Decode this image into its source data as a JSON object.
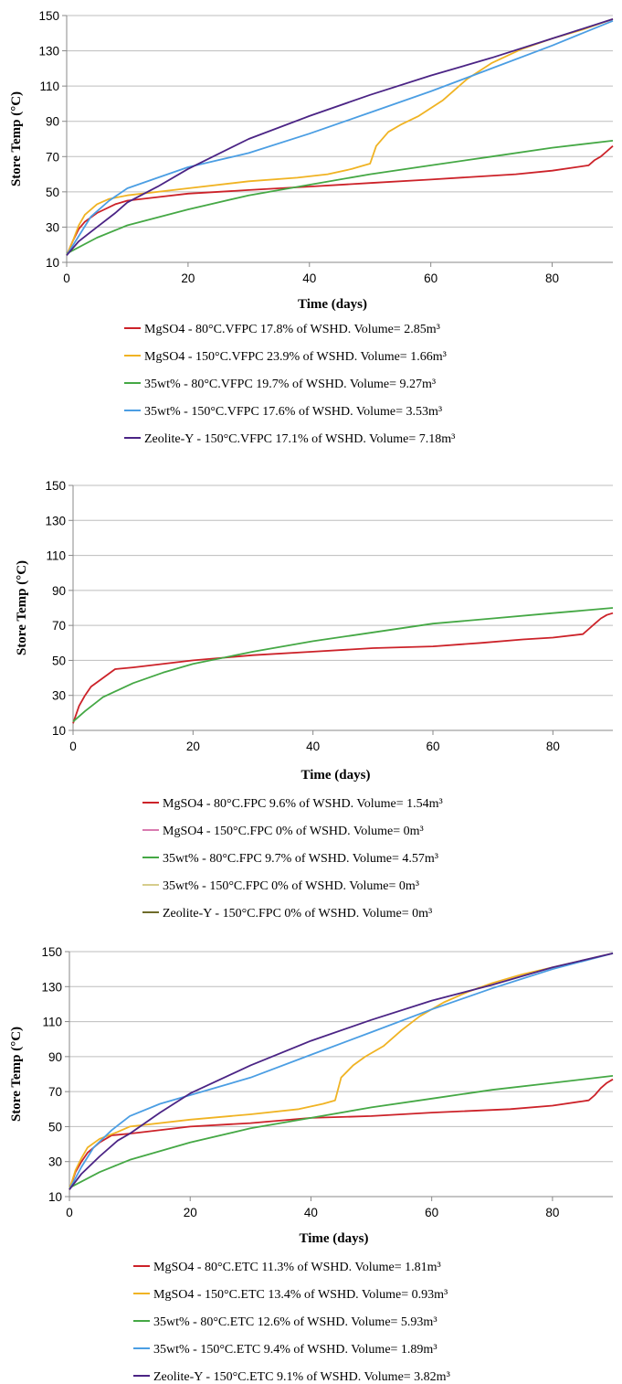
{
  "chart_data": [
    {
      "type": "line",
      "xlabel": "Time (days)",
      "ylabel": "Store Temp (°C)",
      "xlim": [
        0,
        90
      ],
      "ylim": [
        10,
        150
      ],
      "xticks": [
        "0",
        "20",
        "40",
        "60",
        "80"
      ],
      "yticks": [
        "10",
        "30",
        "50",
        "70",
        "90",
        "110",
        "130",
        "150"
      ],
      "grid": "horizontal",
      "legend_position": "bottom",
      "series": [
        {
          "name": "MgSO4 - 80°C.VFPC 17.8% of WSHD. Volume= 2.85m³",
          "color": "#cc2229",
          "x": [
            0,
            1,
            2,
            3,
            5,
            8,
            10,
            15,
            20,
            30,
            40,
            50,
            60,
            74,
            80,
            86,
            87,
            88,
            89,
            90
          ],
          "y": [
            14,
            22,
            29,
            33,
            38,
            43,
            45,
            47,
            49,
            51,
            53,
            55,
            57,
            60,
            62,
            65,
            68,
            70,
            73,
            76
          ]
        },
        {
          "name": "MgSO4 - 150°C.VFPC 23.9% of WSHD. Volume= 1.66m³",
          "color": "#f0b323",
          "x": [
            0,
            1,
            2,
            3,
            5,
            7,
            10,
            20,
            30,
            38,
            43,
            47,
            49,
            50,
            51,
            53,
            55,
            58,
            62,
            66,
            70,
            75,
            80,
            85,
            90
          ],
          "y": [
            14,
            22,
            31,
            37,
            43,
            46,
            48,
            52,
            56,
            58,
            60,
            63,
            65,
            66,
            76,
            84,
            88,
            93,
            102,
            114,
            123,
            131,
            137,
            142,
            148
          ]
        },
        {
          "name": "35wt% - 80°C.VFPC 19.7% of WSHD. Volume= 9.27m³",
          "color": "#45a845",
          "x": [
            0,
            5,
            10,
            20,
            30,
            40,
            50,
            60,
            70,
            80,
            90
          ],
          "y": [
            15,
            24,
            31,
            40,
            48,
            54,
            60,
            65,
            70,
            75,
            79
          ]
        },
        {
          "name": "35wt% - 150°C.VFPC 17.6% of WSHD. Volume= 3.53m³",
          "color": "#4b9ee3",
          "x": [
            0,
            2,
            4,
            7,
            10,
            15,
            20,
            30,
            40,
            50,
            60,
            70,
            80,
            90
          ],
          "y": [
            14,
            25,
            36,
            45,
            52,
            58,
            64,
            72,
            83,
            95,
            107,
            120,
            133,
            147
          ]
        },
        {
          "name": "Zeolite-Y - 150°C.VFPC 17.1% of WSHD. Volume= 7.18m³",
          "color": "#4b2485",
          "x": [
            0,
            2,
            5,
            8,
            10,
            15,
            20,
            30,
            40,
            50,
            60,
            70,
            80,
            90
          ],
          "y": [
            14,
            22,
            30,
            38,
            44,
            53,
            63,
            80,
            93,
            105,
            116,
            126,
            137,
            148
          ]
        }
      ]
    },
    {
      "type": "line",
      "xlabel": "Time (days)",
      "ylabel": "Store Temp (°C)",
      "xlim": [
        0,
        90
      ],
      "ylim": [
        10,
        150
      ],
      "xticks": [
        "0",
        "20",
        "40",
        "60",
        "80"
      ],
      "yticks": [
        "10",
        "30",
        "50",
        "70",
        "90",
        "110",
        "130",
        "150"
      ],
      "grid": "horizontal",
      "legend_position": "bottom",
      "series": [
        {
          "name": "MgSO4 - 80°C.FPC 9.6% of WSHD. Volume= 1.54m³",
          "color": "#cc2229",
          "x": [
            0,
            1,
            2,
            3,
            5,
            7,
            10,
            20,
            30,
            40,
            50,
            60,
            68,
            75,
            80,
            85,
            86,
            87,
            88,
            89,
            90
          ],
          "y": [
            14,
            24,
            30,
            35,
            40,
            45,
            46,
            50,
            53,
            55,
            57,
            58,
            60,
            62,
            63,
            65,
            68,
            71,
            74,
            76,
            77
          ]
        },
        {
          "name": "MgSO4 - 150°C.FPC 0% of WSHD. Volume= 0m³",
          "color": "#d97bb0",
          "x": [],
          "y": []
        },
        {
          "name": "35wt% - 80°C.FPC 9.7% of WSHD. Volume= 4.57m³",
          "color": "#45a845",
          "x": [
            0,
            2,
            5,
            10,
            15,
            20,
            30,
            40,
            50,
            60,
            70,
            80,
            90
          ],
          "y": [
            15,
            21,
            29,
            37,
            43,
            48,
            55,
            61,
            66,
            71,
            74,
            77,
            80
          ]
        },
        {
          "name": "35wt% - 150°C.FPC 0% of WSHD. Volume= 0m³",
          "color": "#d6cd8c",
          "x": [],
          "y": []
        },
        {
          "name": "Zeolite-Y - 150°C.FPC 0% of WSHD. Volume= 0m³",
          "color": "#6e6b2a",
          "x": [],
          "y": []
        }
      ]
    },
    {
      "type": "line",
      "xlabel": "Time (days)",
      "ylabel": "Store Temp (°C)",
      "xlim": [
        0,
        90
      ],
      "ylim": [
        10,
        150
      ],
      "xticks": [
        "0",
        "20",
        "40",
        "60",
        "80"
      ],
      "yticks": [
        "10",
        "30",
        "50",
        "70",
        "90",
        "110",
        "130",
        "150"
      ],
      "grid": "horizontal",
      "legend_position": "bottom",
      "series": [
        {
          "name": "MgSO4 - 80°C.ETC 11.3% of WSHD. Volume= 1.81m³",
          "color": "#cc2229",
          "x": [
            0,
            1,
            2,
            3,
            5,
            7,
            10,
            20,
            30,
            40,
            50,
            60,
            73,
            80,
            86,
            87,
            88,
            89,
            90
          ],
          "y": [
            14,
            24,
            30,
            35,
            41,
            45,
            46,
            50,
            52,
            55,
            56,
            58,
            60,
            62,
            65,
            68,
            72,
            75,
            77
          ]
        },
        {
          "name": "MgSO4 - 150°C.ETC 13.4% of WSHD. Volume= 0.93m³",
          "color": "#f0b323",
          "x": [
            0,
            1,
            2,
            3,
            5,
            8,
            10,
            20,
            30,
            38,
            42,
            44,
            45,
            47,
            49,
            52,
            55,
            58,
            62,
            66,
            70,
            75,
            80,
            85,
            90
          ],
          "y": [
            14,
            25,
            32,
            38,
            43,
            47,
            50,
            54,
            57,
            60,
            63,
            65,
            78,
            85,
            90,
            96,
            105,
            113,
            121,
            127,
            132,
            137,
            141,
            145,
            149
          ]
        },
        {
          "name": "35wt% - 80°C.ETC 12.6% of WSHD. Volume= 5.93m³",
          "color": "#45a845",
          "x": [
            0,
            5,
            10,
            20,
            30,
            40,
            50,
            60,
            70,
            80,
            90
          ],
          "y": [
            15,
            24,
            31,
            41,
            49,
            55,
            61,
            66,
            71,
            75,
            79
          ]
        },
        {
          "name": "35wt% - 150°C.ETC 9.4% of WSHD. Volume= 1.89m³",
          "color": "#4b9ee3",
          "x": [
            0,
            2,
            4,
            7,
            10,
            15,
            20,
            30,
            40,
            50,
            60,
            70,
            80,
            90
          ],
          "y": [
            14,
            27,
            38,
            48,
            56,
            63,
            68,
            78,
            91,
            104,
            117,
            129,
            140,
            149
          ]
        },
        {
          "name": "Zeolite-Y - 150°C.ETC 9.1% of WSHD. Volume= 3.82m³",
          "color": "#4b2485",
          "x": [
            0,
            2,
            5,
            8,
            10,
            15,
            20,
            30,
            40,
            50,
            60,
            70,
            80,
            90
          ],
          "y": [
            14,
            23,
            33,
            42,
            46,
            58,
            69,
            85,
            99,
            111,
            122,
            131,
            141,
            149
          ]
        }
      ]
    }
  ]
}
